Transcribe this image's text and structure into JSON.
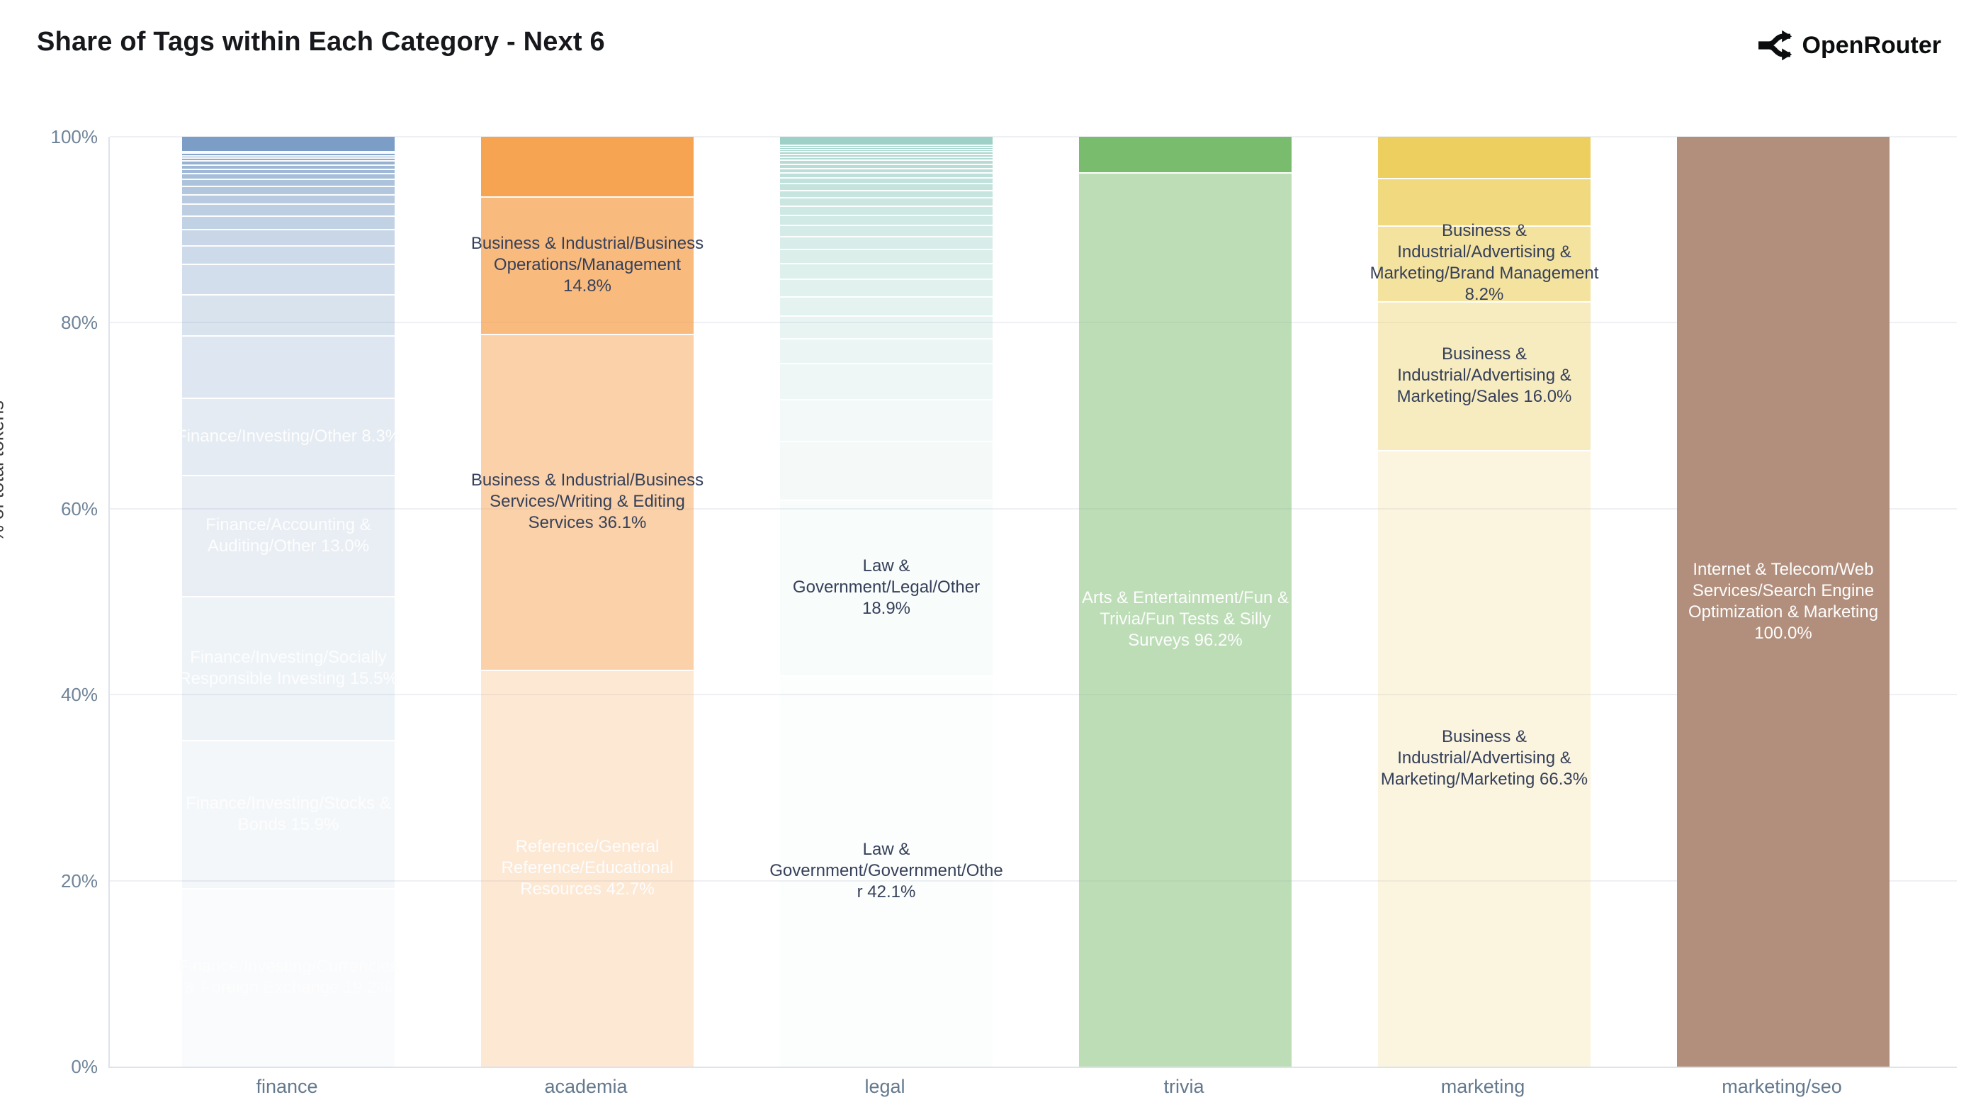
{
  "header": {
    "title": "Share of Tags within Each Category - Next 6",
    "logo_text": "OpenRouter"
  },
  "y_axis": {
    "title": "% of total tokens",
    "ticks": [
      "0%",
      "20%",
      "40%",
      "60%",
      "80%",
      "100%"
    ]
  },
  "chart_data": {
    "type": "bar",
    "subtype": "stacked-100-percent",
    "title": "Share of Tags within Each Category - Next 6",
    "xlabel": "",
    "ylabel": "% of total tokens",
    "ylim": [
      0,
      100
    ],
    "ytick_labels": [
      "0%",
      "20%",
      "40%",
      "60%",
      "80%",
      "100%"
    ],
    "grid": true,
    "legend": false,
    "categories": [
      "finance",
      "academia",
      "legal",
      "trivia",
      "marketing",
      "marketing/seo"
    ],
    "bars": [
      {
        "category": "finance",
        "color": "#7b9dc6",
        "segments": [
          {
            "pct": 19.2,
            "label": "Finance/Investing/Currencies & Foreign Exchange 19.2%",
            "text": "light"
          },
          {
            "pct": 15.9,
            "label": "Finance/Investing/Stocks & Bonds 15.9%",
            "text": "light"
          },
          {
            "pct": 15.5,
            "label": "Finance/Investing/Socially Responsible Investing 15.5%",
            "text": "light"
          },
          {
            "pct": 13.0,
            "label": "Finance/Accounting & Auditing/Other 13.0%",
            "text": "light"
          },
          {
            "pct": 8.3,
            "label": "Finance/Investing/Other 8.3%",
            "text": "light"
          },
          {
            "pct": 6.75
          },
          {
            "pct": 4.4
          },
          {
            "pct": 3.3
          },
          {
            "pct": 2.0
          },
          {
            "pct": 1.7
          },
          {
            "pct": 1.5
          },
          {
            "pct": 1.3
          },
          {
            "pct": 1.0
          },
          {
            "pct": 0.9
          },
          {
            "pct": 0.75
          },
          {
            "pct": 0.6
          },
          {
            "pct": 0.5
          },
          {
            "pct": 0.45
          },
          {
            "pct": 0.4
          },
          {
            "pct": 0.3
          },
          {
            "pct": 0.3
          },
          {
            "pct": 0.25
          },
          {
            "pct": 0.2
          },
          {
            "pct": 1.5
          }
        ]
      },
      {
        "category": "academia",
        "color": "#f6a352",
        "segments": [
          {
            "pct": 42.7,
            "label": "Reference/General Reference/Educational Resources 42.7%",
            "text": "light"
          },
          {
            "pct": 36.1,
            "label": "Business & Industrial/Business Services/Writing & Editing Services 36.1%",
            "text": "dark"
          },
          {
            "pct": 14.8,
            "label": "Business & Industrial/Business Operations/Management 14.8%",
            "text": "dark"
          },
          {
            "pct": 6.4
          }
        ]
      },
      {
        "category": "legal",
        "color": "#9dd1c7",
        "segments": [
          {
            "pct": 42.1,
            "label": "Law & Government/Government/Other 42.1%",
            "text": "dark"
          },
          {
            "pct": 18.9,
            "label": "Law & Government/Legal/Other 18.9%",
            "text": "dark"
          },
          {
            "pct": 6.3
          },
          {
            "pct": 4.5
          },
          {
            "pct": 3.9
          },
          {
            "pct": 2.7
          },
          {
            "pct": 2.4
          },
          {
            "pct": 2.1
          },
          {
            "pct": 1.9
          },
          {
            "pct": 1.7
          },
          {
            "pct": 1.5
          },
          {
            "pct": 1.35
          },
          {
            "pct": 1.2
          },
          {
            "pct": 1.1
          },
          {
            "pct": 1.0
          },
          {
            "pct": 0.9
          },
          {
            "pct": 0.8
          },
          {
            "pct": 0.7
          },
          {
            "pct": 0.62
          },
          {
            "pct": 0.55
          },
          {
            "pct": 0.5
          },
          {
            "pct": 0.45
          },
          {
            "pct": 0.4
          },
          {
            "pct": 0.36
          },
          {
            "pct": 0.32
          },
          {
            "pct": 0.28
          },
          {
            "pct": 0.25
          },
          {
            "pct": 0.22
          },
          {
            "pct": 0.2
          },
          {
            "pct": 0.85
          }
        ]
      },
      {
        "category": "trivia",
        "color": "#7abc6e",
        "segments": [
          {
            "pct": 96.2,
            "label": "Arts & Entertainment/Fun & Trivia/Fun Tests & Silly Surveys 96.2%",
            "text": "light"
          },
          {
            "pct": 3.8
          }
        ]
      },
      {
        "category": "marketing",
        "color": "#eccf5f",
        "segments": [
          {
            "pct": 66.3,
            "label": "Business & Industrial/Advertising & Marketing/Marketing 66.3%",
            "text": "dark"
          },
          {
            "pct": 16.0,
            "label": "Business & Industrial/Advertising & Marketing/Sales 16.0%",
            "text": "dark"
          },
          {
            "pct": 8.2,
            "label": "Business & Industrial/Advertising & Marketing/Brand Management 8.2%",
            "text": "dark"
          },
          {
            "pct": 5.1
          },
          {
            "pct": 4.4
          }
        ]
      },
      {
        "category": "marketing/seo",
        "color": "#b28f7c",
        "segments": [
          {
            "pct": 100.0,
            "label": "Internet & Telecom/Web Services/Search Engine Optimization & Marketing 100.0%",
            "text": "light"
          }
        ]
      }
    ]
  },
  "layout_colors": {
    "gridline": "#eef0f4",
    "axis_line": "#dde3ec",
    "tick_text": "#6f8499",
    "category_text": "#64798d",
    "dark_label_text": "#36405a",
    "light_label_text": "#fdfdfd"
  }
}
